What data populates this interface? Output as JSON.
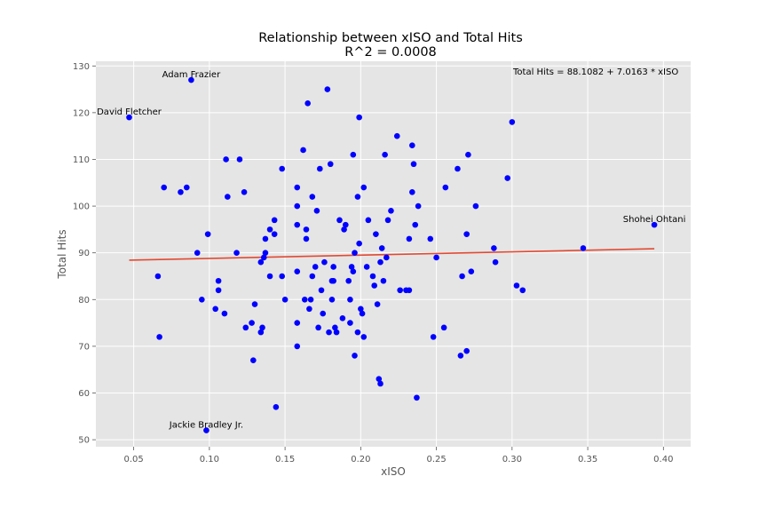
{
  "chart_data": {
    "type": "scatter",
    "title": "Relationship between xISO and Total Hits",
    "subtitle": "R^2 = 0.0008",
    "xlabel": "xISO",
    "ylabel": "Total Hits",
    "xlim": [
      0.025,
      0.418
    ],
    "ylim": [
      48.5,
      131
    ],
    "grid": true,
    "x_ticks": [
      "0.05",
      "0.10",
      "0.15",
      "0.20",
      "0.25",
      "0.30",
      "0.35",
      "0.40"
    ],
    "y_ticks": [
      "50",
      "60",
      "70",
      "80",
      "90",
      "100",
      "110",
      "120",
      "130"
    ],
    "equation": "Total Hits = 88.1082 + 7.0163 * xISO",
    "colors": {
      "points": "#0000ff",
      "trend": "#e24a33",
      "plot_bg": "#e5e5e5",
      "grid": "#ffffff"
    },
    "trendline": {
      "intercept": 88.1082,
      "slope": 7.0163,
      "x_range": [
        0.047,
        0.394
      ]
    },
    "labeled_points": [
      {
        "label": "Adam Frazier",
        "x": 0.088,
        "y": 127
      },
      {
        "label": "David Fletcher",
        "x": 0.047,
        "y": 119
      },
      {
        "label": "Shohei Ohtani",
        "x": 0.394,
        "y": 96
      },
      {
        "label": "Jackie Bradley Jr.",
        "x": 0.098,
        "y": 52
      }
    ],
    "points": [
      [
        0.047,
        119
      ],
      [
        0.066,
        85
      ],
      [
        0.067,
        72
      ],
      [
        0.07,
        104
      ],
      [
        0.081,
        103
      ],
      [
        0.085,
        104
      ],
      [
        0.088,
        127
      ],
      [
        0.092,
        90
      ],
      [
        0.095,
        80
      ],
      [
        0.099,
        94
      ],
      [
        0.104,
        78
      ],
      [
        0.106,
        82
      ],
      [
        0.106,
        84
      ],
      [
        0.11,
        77
      ],
      [
        0.111,
        110
      ],
      [
        0.112,
        102
      ],
      [
        0.118,
        90
      ],
      [
        0.12,
        110
      ],
      [
        0.123,
        103
      ],
      [
        0.124,
        74
      ],
      [
        0.128,
        75
      ],
      [
        0.129,
        67
      ],
      [
        0.13,
        79
      ],
      [
        0.134,
        73
      ],
      [
        0.134,
        88
      ],
      [
        0.135,
        74
      ],
      [
        0.136,
        89
      ],
      [
        0.137,
        90
      ],
      [
        0.137,
        93
      ],
      [
        0.14,
        95
      ],
      [
        0.14,
        85
      ],
      [
        0.143,
        97
      ],
      [
        0.143,
        94
      ],
      [
        0.144,
        57
      ],
      [
        0.148,
        108
      ],
      [
        0.148,
        85
      ],
      [
        0.15,
        80
      ],
      [
        0.158,
        104
      ],
      [
        0.158,
        100
      ],
      [
        0.158,
        96
      ],
      [
        0.158,
        86
      ],
      [
        0.158,
        75
      ],
      [
        0.158,
        70
      ],
      [
        0.162,
        112
      ],
      [
        0.163,
        80
      ],
      [
        0.164,
        95
      ],
      [
        0.164,
        93
      ],
      [
        0.165,
        122
      ],
      [
        0.166,
        78
      ],
      [
        0.167,
        80
      ],
      [
        0.168,
        102
      ],
      [
        0.168,
        85
      ],
      [
        0.17,
        87
      ],
      [
        0.171,
        99
      ],
      [
        0.172,
        74
      ],
      [
        0.173,
        108
      ],
      [
        0.174,
        82
      ],
      [
        0.175,
        77
      ],
      [
        0.176,
        88
      ],
      [
        0.178,
        125
      ],
      [
        0.179,
        73
      ],
      [
        0.18,
        109
      ],
      [
        0.181,
        84
      ],
      [
        0.181,
        80
      ],
      [
        0.182,
        84
      ],
      [
        0.182,
        87
      ],
      [
        0.183,
        74
      ],
      [
        0.184,
        73
      ],
      [
        0.186,
        97
      ],
      [
        0.188,
        76
      ],
      [
        0.189,
        95
      ],
      [
        0.19,
        96
      ],
      [
        0.192,
        84
      ],
      [
        0.193,
        80
      ],
      [
        0.193,
        75
      ],
      [
        0.194,
        87
      ],
      [
        0.195,
        111
      ],
      [
        0.195,
        86
      ],
      [
        0.196,
        68
      ],
      [
        0.196,
        90
      ],
      [
        0.198,
        102
      ],
      [
        0.198,
        73
      ],
      [
        0.199,
        119
      ],
      [
        0.199,
        92
      ],
      [
        0.2,
        78
      ],
      [
        0.201,
        77
      ],
      [
        0.202,
        72
      ],
      [
        0.202,
        104
      ],
      [
        0.204,
        87
      ],
      [
        0.205,
        97
      ],
      [
        0.208,
        85
      ],
      [
        0.209,
        83
      ],
      [
        0.21,
        94
      ],
      [
        0.211,
        79
      ],
      [
        0.212,
        63
      ],
      [
        0.213,
        62
      ],
      [
        0.213,
        88
      ],
      [
        0.214,
        91
      ],
      [
        0.215,
        84
      ],
      [
        0.216,
        111
      ],
      [
        0.217,
        89
      ],
      [
        0.218,
        97
      ],
      [
        0.22,
        99
      ],
      [
        0.224,
        115
      ],
      [
        0.226,
        82
      ],
      [
        0.23,
        82
      ],
      [
        0.232,
        82
      ],
      [
        0.232,
        93
      ],
      [
        0.234,
        103
      ],
      [
        0.234,
        113
      ],
      [
        0.235,
        109
      ],
      [
        0.236,
        96
      ],
      [
        0.237,
        59
      ],
      [
        0.238,
        100
      ],
      [
        0.246,
        93
      ],
      [
        0.248,
        72
      ],
      [
        0.25,
        89
      ],
      [
        0.255,
        74
      ],
      [
        0.256,
        104
      ],
      [
        0.264,
        108
      ],
      [
        0.266,
        68
      ],
      [
        0.267,
        85
      ],
      [
        0.27,
        94
      ],
      [
        0.27,
        69
      ],
      [
        0.271,
        111
      ],
      [
        0.273,
        86
      ],
      [
        0.276,
        100
      ],
      [
        0.288,
        91
      ],
      [
        0.289,
        88
      ],
      [
        0.297,
        106
      ],
      [
        0.3,
        118
      ],
      [
        0.303,
        83
      ],
      [
        0.307,
        82
      ],
      [
        0.347,
        91
      ],
      [
        0.394,
        96
      ],
      [
        0.098,
        52
      ]
    ]
  }
}
